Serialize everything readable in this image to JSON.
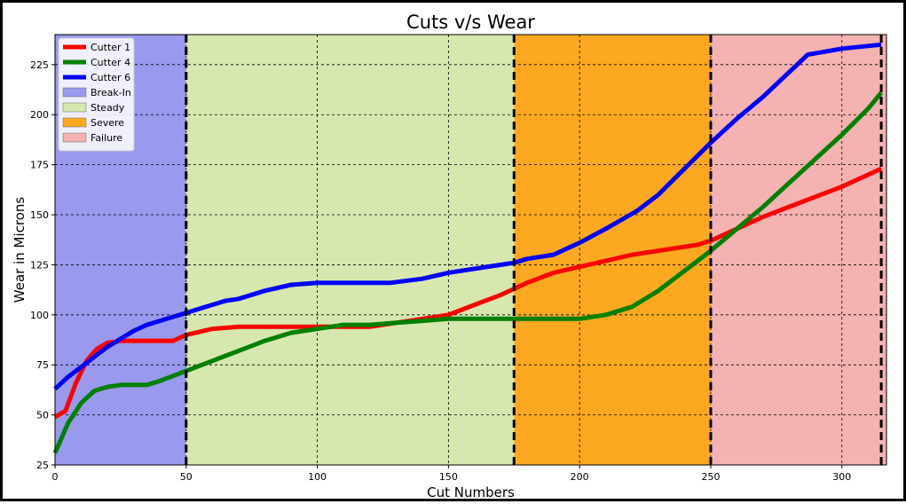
{
  "chart_data": {
    "type": "line",
    "title": "Cuts v/s Wear",
    "xlabel": "Cut Numbers",
    "ylabel": "Wear in Microns",
    "xlim": [
      0,
      317
    ],
    "ylim": [
      25,
      240
    ],
    "xticks": [
      0,
      50,
      100,
      150,
      200,
      250,
      300
    ],
    "yticks": [
      25,
      50,
      75,
      100,
      125,
      150,
      175,
      200,
      225
    ],
    "grid": true,
    "legend_position": "top-left",
    "regions": [
      {
        "name": "Break-In",
        "x0": 0,
        "x1": 50,
        "color": "#9999ee"
      },
      {
        "name": "Steady",
        "x0": 50,
        "x1": 175,
        "color": "#d6e8ae"
      },
      {
        "name": "Severe",
        "x0": 175,
        "x1": 250,
        "color": "#fca921"
      },
      {
        "name": "Failure",
        "x0": 250,
        "x1": 317,
        "color": "#f4b2b0"
      }
    ],
    "boundaries": [
      50,
      175,
      250,
      315
    ],
    "series": [
      {
        "name": "Cutter 1",
        "color": "#ff0000",
        "x": [
          0,
          4,
          8,
          12,
          16,
          20,
          25,
          30,
          35,
          40,
          45,
          50,
          60,
          70,
          80,
          90,
          100,
          110,
          120,
          130,
          140,
          150,
          160,
          170,
          175,
          180,
          190,
          200,
          210,
          220,
          230,
          240,
          245,
          250,
          260,
          270,
          280,
          290,
          300,
          310,
          315
        ],
        "y": [
          49,
          52,
          66,
          77,
          83,
          86,
          87,
          87,
          87,
          87,
          87,
          90,
          93,
          94,
          94,
          94,
          94,
          94,
          94,
          96,
          98,
          100,
          105,
          110,
          113,
          116,
          121,
          124,
          127,
          130,
          132,
          134,
          135,
          137,
          143,
          149,
          154,
          159,
          164,
          170,
          173
        ]
      },
      {
        "name": "Cutter 4",
        "color": "#008000",
        "x": [
          0,
          5,
          10,
          15,
          20,
          25,
          30,
          35,
          40,
          50,
          60,
          70,
          80,
          90,
          100,
          110,
          120,
          130,
          140,
          150,
          160,
          170,
          175,
          180,
          190,
          200,
          210,
          220,
          230,
          240,
          250,
          260,
          270,
          280,
          290,
          300,
          310,
          315
        ],
        "y": [
          31,
          46,
          56,
          62,
          64,
          65,
          65,
          65,
          67,
          72,
          77,
          82,
          87,
          91,
          93,
          95,
          95,
          96,
          97,
          98,
          98,
          98,
          98,
          98,
          98,
          98,
          100,
          104,
          112,
          122,
          132,
          143,
          154,
          166,
          178,
          190,
          203,
          211
        ]
      },
      {
        "name": "Cutter 6",
        "color": "#0000ff",
        "x": [
          0,
          5,
          10,
          15,
          20,
          25,
          30,
          35,
          40,
          45,
          50,
          55,
          60,
          65,
          70,
          80,
          90,
          100,
          110,
          120,
          128,
          140,
          150,
          160,
          170,
          175,
          180,
          190,
          200,
          210,
          222,
          230,
          240,
          250,
          260,
          270,
          287,
          300,
          315
        ],
        "y": [
          63,
          69,
          74,
          79,
          84,
          88,
          92,
          95,
          97,
          99,
          101,
          103,
          105,
          107,
          108,
          112,
          115,
          116,
          116,
          116,
          116,
          118,
          121,
          123,
          125,
          126,
          128,
          130,
          136,
          143,
          152,
          160,
          173,
          186,
          198,
          209,
          230,
          233,
          235
        ]
      }
    ]
  }
}
